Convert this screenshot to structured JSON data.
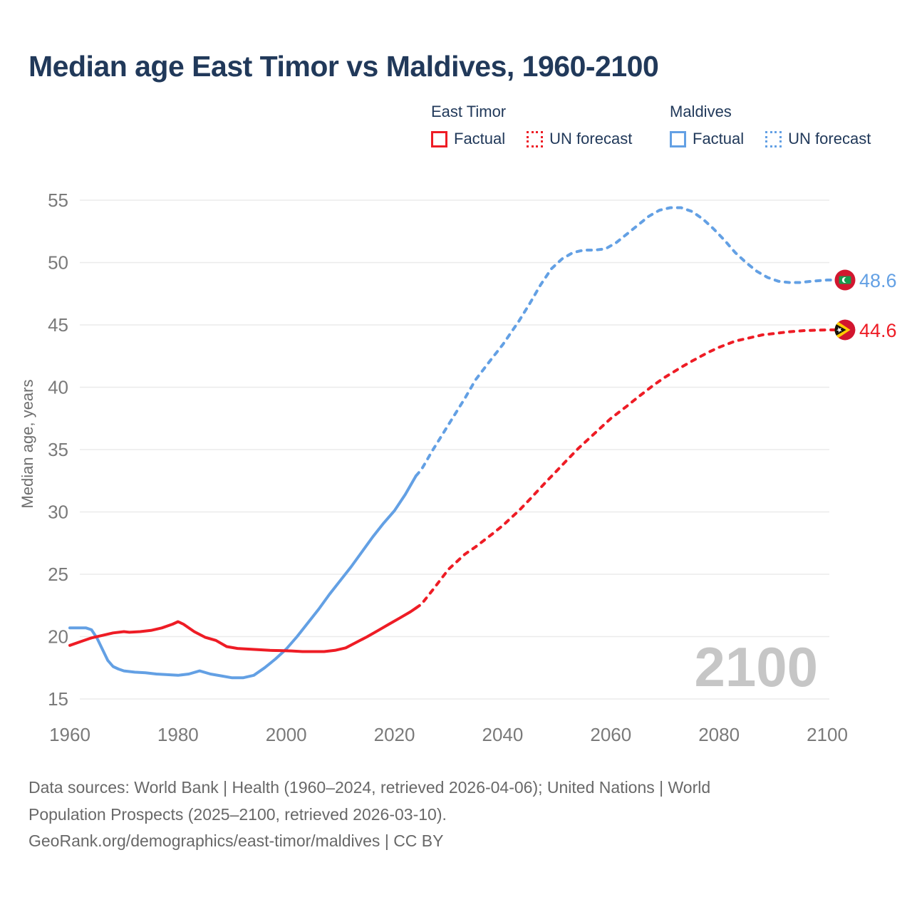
{
  "header": {
    "title": "Median age East Timor vs Maldives, 1960-2100"
  },
  "legend": {
    "groups": [
      {
        "label": "East Timor",
        "color": "#ee1c25",
        "items": [
          {
            "label": "Factual",
            "style": "solid"
          },
          {
            "label": "UN forecast",
            "style": "dotted"
          }
        ]
      },
      {
        "label": "Maldives",
        "color": "#63a0e4",
        "items": [
          {
            "label": "Factual",
            "style": "solid"
          },
          {
            "label": "UN forecast",
            "style": "dotted"
          }
        ]
      }
    ]
  },
  "chart_data": {
    "type": "line",
    "title": "Median age East Timor vs Maldives, 1960-2100",
    "xlabel": "",
    "ylabel": "Median age, years",
    "xlim": [
      1960,
      2100
    ],
    "ylim": [
      15,
      55
    ],
    "xticks": [
      1960,
      1980,
      2000,
      2020,
      2040,
      2060,
      2080,
      2100
    ],
    "yticks": [
      15,
      20,
      25,
      30,
      35,
      40,
      45,
      50,
      55
    ],
    "grid": "horizontal",
    "legend_position": "top",
    "watermark": "2100",
    "colors": {
      "east_timor": "#ee1c25",
      "maldives": "#63a0e4",
      "grid": "#ebebeb",
      "ticks": "#7a7a7a",
      "axis_title": "#6e6e6e",
      "watermark": "#c6c6c6"
    },
    "series": [
      {
        "name": "Maldives — Factual",
        "color": "#63a0e4",
        "style": "solid",
        "points": [
          [
            1960,
            20.7
          ],
          [
            1962,
            20.7
          ],
          [
            1963,
            20.7
          ],
          [
            1964,
            20.55
          ],
          [
            1965,
            19.9
          ],
          [
            1966,
            19.0
          ],
          [
            1967,
            18.1
          ],
          [
            1968,
            17.6
          ],
          [
            1969,
            17.4
          ],
          [
            1970,
            17.25
          ],
          [
            1972,
            17.15
          ],
          [
            1974,
            17.1
          ],
          [
            1976,
            17.0
          ],
          [
            1978,
            16.95
          ],
          [
            1980,
            16.9
          ],
          [
            1982,
            17.0
          ],
          [
            1984,
            17.25
          ],
          [
            1986,
            17.0
          ],
          [
            1988,
            16.85
          ],
          [
            1990,
            16.7
          ],
          [
            1992,
            16.7
          ],
          [
            1994,
            16.9
          ],
          [
            1996,
            17.5
          ],
          [
            1998,
            18.2
          ],
          [
            2000,
            19.0
          ],
          [
            2002,
            20.0
          ],
          [
            2004,
            21.1
          ],
          [
            2006,
            22.2
          ],
          [
            2008,
            23.4
          ],
          [
            2010,
            24.5
          ],
          [
            2012,
            25.6
          ],
          [
            2014,
            26.8
          ],
          [
            2016,
            28.0
          ],
          [
            2018,
            29.1
          ],
          [
            2020,
            30.1
          ],
          [
            2022,
            31.4
          ],
          [
            2024,
            32.9
          ]
        ]
      },
      {
        "name": "Maldives — UN forecast",
        "color": "#63a0e4",
        "style": "dashed",
        "lead_to_flag": true,
        "points": [
          [
            2024,
            32.9
          ],
          [
            2025,
            33.4
          ],
          [
            2027,
            34.9
          ],
          [
            2030,
            37.0
          ],
          [
            2033,
            39.1
          ],
          [
            2035,
            40.6
          ],
          [
            2038,
            42.3
          ],
          [
            2040,
            43.4
          ],
          [
            2043,
            45.3
          ],
          [
            2045,
            46.7
          ],
          [
            2047,
            48.2
          ],
          [
            2049,
            49.5
          ],
          [
            2051,
            50.3
          ],
          [
            2053,
            50.8
          ],
          [
            2055,
            51.0
          ],
          [
            2057,
            51.0
          ],
          [
            2059,
            51.1
          ],
          [
            2061,
            51.6
          ],
          [
            2063,
            52.3
          ],
          [
            2065,
            53.0
          ],
          [
            2067,
            53.7
          ],
          [
            2069,
            54.2
          ],
          [
            2071,
            54.4
          ],
          [
            2073,
            54.4
          ],
          [
            2075,
            54.1
          ],
          [
            2077,
            53.5
          ],
          [
            2079,
            52.7
          ],
          [
            2081,
            51.8
          ],
          [
            2083,
            50.8
          ],
          [
            2085,
            50.0
          ],
          [
            2087,
            49.3
          ],
          [
            2089,
            48.8
          ],
          [
            2091,
            48.5
          ],
          [
            2093,
            48.4
          ],
          [
            2095,
            48.4
          ],
          [
            2097,
            48.5
          ],
          [
            2100,
            48.6
          ]
        ]
      },
      {
        "name": "East Timor — Factual",
        "color": "#ee1c25",
        "style": "solid",
        "points": [
          [
            1960,
            19.3
          ],
          [
            1962,
            19.6
          ],
          [
            1964,
            19.9
          ],
          [
            1966,
            20.1
          ],
          [
            1968,
            20.3
          ],
          [
            1970,
            20.4
          ],
          [
            1971,
            20.35
          ],
          [
            1973,
            20.4
          ],
          [
            1975,
            20.5
          ],
          [
            1977,
            20.7
          ],
          [
            1979,
            21.0
          ],
          [
            1980,
            21.2
          ],
          [
            1981,
            21.0
          ],
          [
            1983,
            20.4
          ],
          [
            1985,
            19.95
          ],
          [
            1987,
            19.7
          ],
          [
            1989,
            19.2
          ],
          [
            1991,
            19.05
          ],
          [
            1993,
            19.0
          ],
          [
            1995,
            18.95
          ],
          [
            1997,
            18.9
          ],
          [
            1999,
            18.88
          ],
          [
            2001,
            18.85
          ],
          [
            2003,
            18.8
          ],
          [
            2005,
            18.8
          ],
          [
            2007,
            18.8
          ],
          [
            2009,
            18.9
          ],
          [
            2011,
            19.1
          ],
          [
            2013,
            19.55
          ],
          [
            2015,
            20.0
          ],
          [
            2017,
            20.5
          ],
          [
            2019,
            21.0
          ],
          [
            2021,
            21.5
          ],
          [
            2023,
            22.0
          ],
          [
            2024,
            22.3
          ]
        ]
      },
      {
        "name": "East Timor — UN forecast",
        "color": "#ee1c25",
        "style": "dashed",
        "lead_to_flag": true,
        "points": [
          [
            2024,
            22.3
          ],
          [
            2025,
            22.6
          ],
          [
            2027,
            23.7
          ],
          [
            2030,
            25.4
          ],
          [
            2033,
            26.6
          ],
          [
            2035,
            27.2
          ],
          [
            2038,
            28.2
          ],
          [
            2040,
            28.9
          ],
          [
            2043,
            30.1
          ],
          [
            2045,
            31.0
          ],
          [
            2048,
            32.4
          ],
          [
            2050,
            33.3
          ],
          [
            2052,
            34.2
          ],
          [
            2054,
            35.1
          ],
          [
            2056,
            35.9
          ],
          [
            2058,
            36.7
          ],
          [
            2060,
            37.5
          ],
          [
            2063,
            38.5
          ],
          [
            2065,
            39.2
          ],
          [
            2068,
            40.2
          ],
          [
            2070,
            40.8
          ],
          [
            2073,
            41.6
          ],
          [
            2075,
            42.1
          ],
          [
            2078,
            42.8
          ],
          [
            2080,
            43.2
          ],
          [
            2083,
            43.7
          ],
          [
            2085,
            43.9
          ],
          [
            2088,
            44.2
          ],
          [
            2090,
            44.3
          ],
          [
            2093,
            44.45
          ],
          [
            2096,
            44.55
          ],
          [
            2100,
            44.6
          ]
        ]
      }
    ],
    "end_labels": [
      {
        "series": "Maldives",
        "text": "48.6",
        "value": 48.6,
        "color": "#63a0e4",
        "flag": "maldives"
      },
      {
        "series": "East Timor",
        "text": "44.6",
        "value": 44.6,
        "color": "#ee1c25",
        "flag": "east-timor"
      }
    ],
    "flag_colors": {
      "red": "#d2162f",
      "green": "#17994d",
      "yellow": "#ffcd00",
      "black": "#17130d",
      "white": "#ffffff"
    }
  },
  "footer": {
    "lines": [
      "Data sources: World Bank | Health (1960–2024, retrieved 2026-04-06); United Nations | World",
      "Population Prospects (2025–2100, retrieved 2026-03-10).",
      "GeoRank.org/demographics/east-timor/maldives | CC BY"
    ]
  }
}
